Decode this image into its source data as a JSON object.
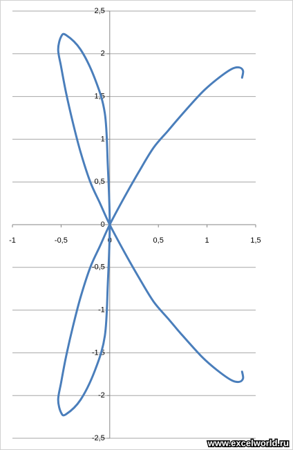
{
  "chart_data": {
    "type": "line",
    "x": [
      1.36,
      1.37,
      1.33,
      1.25,
      1.1,
      0.95,
      0.75,
      0.6,
      0.45,
      0.3,
      0.15,
      0,
      -0.1,
      -0.2,
      -0.3,
      -0.38,
      -0.45,
      -0.5,
      -0.53,
      -0.5,
      -0.45,
      -0.3,
      -0.15,
      -0.05,
      -0.02,
      0,
      -0.02,
      -0.05,
      -0.15,
      -0.3,
      -0.45,
      -0.5,
      -0.53,
      -0.5,
      -0.45,
      -0.38,
      -0.3,
      -0.2,
      -0.1,
      0,
      0.15,
      0.3,
      0.45,
      0.6,
      0.75,
      0.95,
      1.1,
      1.25,
      1.33,
      1.37,
      1.36
    ],
    "values": [
      1.72,
      1.8,
      1.84,
      1.82,
      1.7,
      1.55,
      1.3,
      1.1,
      0.9,
      0.62,
      0.32,
      0,
      -0.25,
      -0.5,
      -0.85,
      -1.2,
      -1.55,
      -1.85,
      -2.05,
      -2.2,
      -2.22,
      -2.05,
      -1.7,
      -1.3,
      -0.7,
      0,
      0.7,
      1.3,
      1.7,
      2.05,
      2.22,
      2.2,
      2.05,
      1.85,
      1.55,
      1.2,
      0.85,
      0.5,
      0.25,
      0,
      -0.32,
      -0.62,
      -0.9,
      -1.1,
      -1.3,
      -1.55,
      -1.7,
      -1.82,
      -1.84,
      -1.8,
      -1.72
    ],
    "color": "#4a7ebb",
    "xlim": [
      -1,
      1.5
    ],
    "ylim": [
      -2.5,
      2.5
    ],
    "xticks": [
      -1,
      {
        "value": -0.5,
        "label": "-0,5"
      },
      0,
      {
        "value": 0.5,
        "label": "0,5"
      },
      1,
      {
        "value": 1.5,
        "label": "1,5"
      }
    ],
    "yticks": [
      {
        "value": -2.5,
        "label": "-2,5"
      },
      -2,
      {
        "value": -1.5,
        "label": "-1,5"
      },
      -1,
      {
        "value": -0.5,
        "label": "-0,5"
      },
      0,
      {
        "value": 0.5,
        "label": "0,5"
      },
      1,
      {
        "value": 1.5,
        "label": "1,5"
      },
      2,
      {
        "value": 2.5,
        "label": "2,5"
      }
    ],
    "grid": true,
    "watermark": "www.excelworld.ru"
  }
}
